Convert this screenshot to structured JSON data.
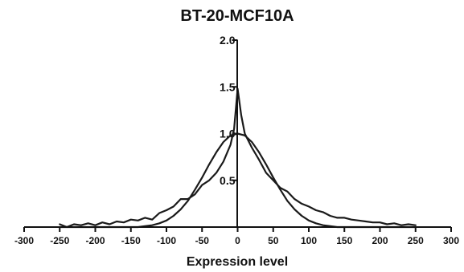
{
  "chart_data": {
    "type": "line",
    "title": "BT-20-MCF10A",
    "xlabel": "Expression level",
    "ylabel": "",
    "xlim": [
      -300,
      300
    ],
    "ylim": [
      0,
      2.0
    ],
    "x_ticks": [
      -300,
      -250,
      -200,
      -150,
      -100,
      -50,
      0,
      50,
      100,
      150,
      200,
      250,
      300
    ],
    "y_ticks": [
      0.5,
      1.0,
      1.5,
      2.0
    ],
    "y_tick_labels": [
      "0.5",
      "1.0",
      "1.5",
      "2.0"
    ],
    "grid": false,
    "legend": "none",
    "series": [
      {
        "x": [
          -250,
          -240,
          -230,
          -220,
          -210,
          -200,
          -190,
          -180,
          -170,
          -160,
          -150,
          -140,
          -130,
          -120,
          -110,
          -100,
          -90,
          -80,
          -70,
          -60,
          -50,
          -40,
          -30,
          -20,
          -10,
          -5,
          0,
          5,
          10,
          20,
          30,
          40,
          50,
          60,
          70,
          80,
          90,
          100,
          110,
          120,
          130,
          140,
          150,
          160,
          170,
          180,
          190,
          200,
          210,
          220,
          230,
          240,
          250
        ],
        "values": [
          0.03,
          0.0,
          0.03,
          0.02,
          0.04,
          0.02,
          0.05,
          0.03,
          0.06,
          0.05,
          0.08,
          0.07,
          0.1,
          0.08,
          0.15,
          0.18,
          0.22,
          0.3,
          0.3,
          0.35,
          0.45,
          0.5,
          0.58,
          0.7,
          0.88,
          1.05,
          1.48,
          1.2,
          1.0,
          0.85,
          0.72,
          0.58,
          0.5,
          0.42,
          0.38,
          0.3,
          0.25,
          0.22,
          0.18,
          0.16,
          0.12,
          0.1,
          0.1,
          0.08,
          0.07,
          0.06,
          0.05,
          0.05,
          0.03,
          0.04,
          0.02,
          0.03,
          0.02
        ]
      },
      {
        "x": [
          -250,
          -240,
          -230,
          -220,
          -210,
          -200,
          -190,
          -180,
          -170,
          -160,
          -150,
          -140,
          -130,
          -120,
          -110,
          -100,
          -90,
          -80,
          -70,
          -60,
          -50,
          -40,
          -30,
          -20,
          -10,
          0,
          10,
          20,
          30,
          40,
          50,
          60,
          70,
          80,
          90,
          100,
          110,
          120,
          130,
          140,
          150,
          160,
          170,
          180,
          190,
          200,
          210,
          220,
          230,
          240,
          250
        ],
        "values": [
          0.0,
          0.0,
          0.0,
          0.0,
          0.0,
          0.0,
          0.0,
          0.0,
          0.0,
          0.0,
          0.0,
          0.0,
          0.01,
          0.02,
          0.04,
          0.07,
          0.12,
          0.19,
          0.28,
          0.4,
          0.53,
          0.67,
          0.8,
          0.91,
          0.98,
          1.0,
          0.98,
          0.91,
          0.8,
          0.67,
          0.53,
          0.4,
          0.28,
          0.19,
          0.12,
          0.07,
          0.04,
          0.02,
          0.01,
          0.0,
          0.0,
          0.0,
          0.0,
          0.0,
          0.0,
          0.0,
          0.0,
          0.0,
          0.0,
          0.0,
          0.0
        ]
      }
    ]
  }
}
